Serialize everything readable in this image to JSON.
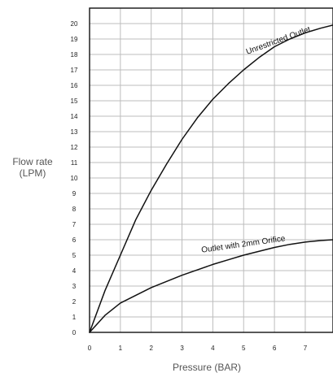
{
  "chart_data": {
    "type": "line",
    "title": "",
    "xlabel": "Pressure (BAR)",
    "ylabel_lines": [
      "Flow rate",
      "(LPM)"
    ],
    "xlim": [
      0,
      7.9
    ],
    "ylim": [
      0,
      21
    ],
    "x_ticks": [
      0,
      1,
      2,
      3,
      4,
      5,
      6,
      7
    ],
    "y_ticks": [
      0,
      1,
      2,
      3,
      4,
      5,
      6,
      7,
      8,
      9,
      10,
      11,
      12,
      13,
      14,
      15,
      16,
      17,
      18,
      19,
      20
    ],
    "grid": true,
    "legend": "none",
    "series": [
      {
        "name": "Unrestricted Outlet",
        "color": "#111111",
        "x": [
          0,
          0.5,
          1,
          1.5,
          2,
          2.5,
          3,
          3.5,
          4,
          4.5,
          5,
          5.5,
          6,
          6.5,
          7,
          7.5,
          7.9
        ],
        "y": [
          0,
          2.7,
          5.0,
          7.3,
          9.2,
          10.9,
          12.5,
          13.9,
          15.1,
          16.1,
          17.0,
          17.8,
          18.5,
          19.0,
          19.4,
          19.7,
          19.9
        ]
      },
      {
        "name": "Outlet with 2mm Orifice",
        "color": "#111111",
        "x": [
          0,
          0.5,
          1,
          1.5,
          2,
          2.5,
          3,
          3.5,
          4,
          4.5,
          5,
          5.5,
          6,
          6.5,
          7,
          7.5,
          7.9
        ],
        "y": [
          0,
          1.1,
          1.9,
          2.4,
          2.9,
          3.3,
          3.7,
          4.05,
          4.4,
          4.7,
          5.0,
          5.25,
          5.5,
          5.7,
          5.85,
          5.95,
          6.0
        ]
      }
    ]
  }
}
